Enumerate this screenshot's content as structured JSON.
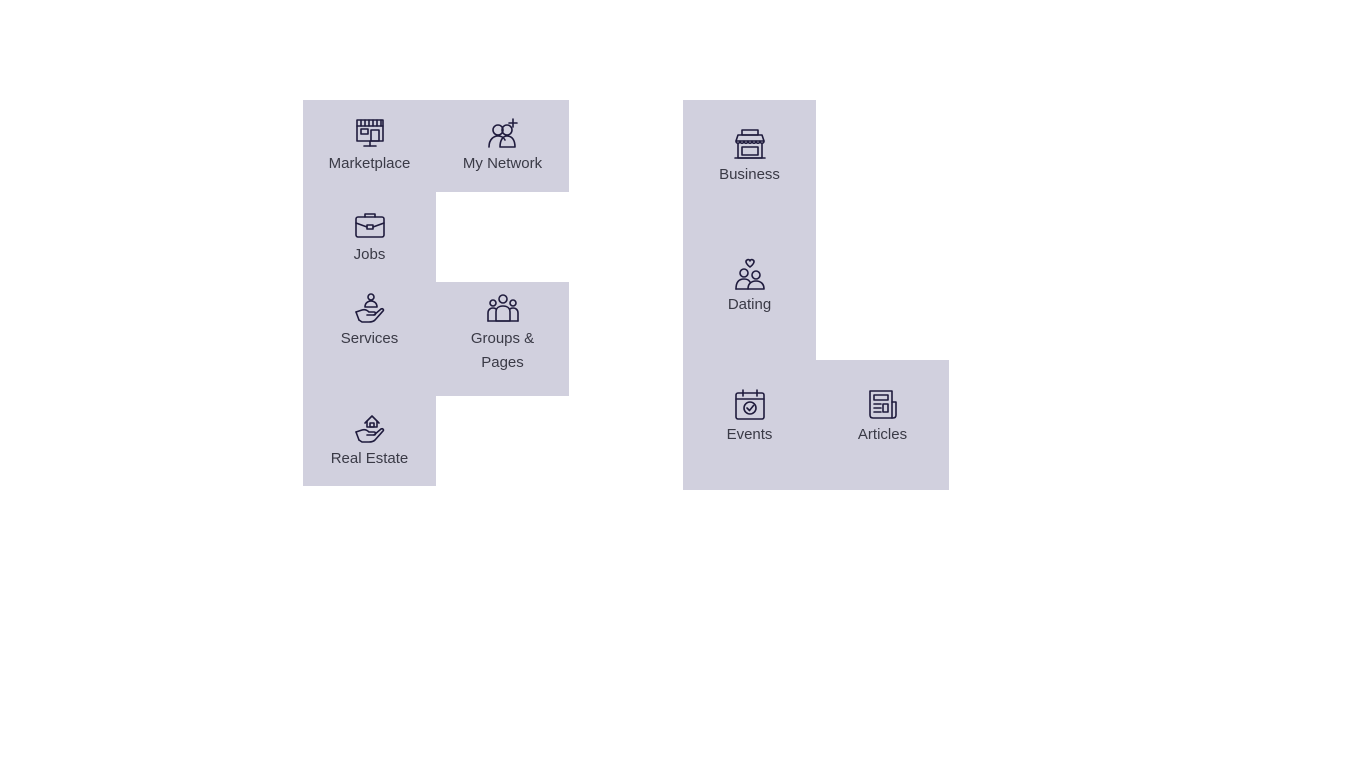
{
  "left_group": {
    "items": [
      {
        "label": "Marketplace",
        "icon": "marketplace-icon"
      },
      {
        "label": "My Network",
        "icon": "my-network-icon"
      },
      {
        "label": "Jobs",
        "icon": "briefcase-icon"
      },
      {
        "label": "Services",
        "icon": "services-hand-icon"
      },
      {
        "label": "Groups & Pages",
        "icon": "groups-icon"
      },
      {
        "label": "Real Estate",
        "icon": "real-estate-hand-icon"
      }
    ]
  },
  "right_group": {
    "items": [
      {
        "label": "Business",
        "icon": "storefront-icon"
      },
      {
        "label": "Dating",
        "icon": "couple-heart-icon"
      },
      {
        "label": "Events",
        "icon": "calendar-check-icon"
      },
      {
        "label": "Articles",
        "icon": "newspaper-icon"
      }
    ]
  },
  "colors": {
    "tile_background": "#d1d0de",
    "icon_stroke": "#1f1b3d",
    "label_text": "#3a3a46",
    "page_background": "#ffffff"
  }
}
